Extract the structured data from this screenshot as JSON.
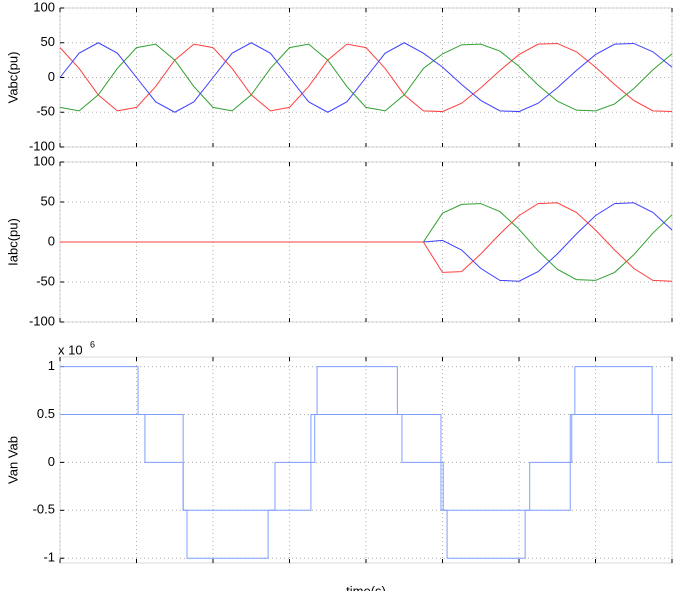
{
  "chart_data": [
    {
      "type": "line",
      "ylabel": "Vabc(pu)",
      "xlim": [
        0,
        8
      ],
      "xticks": [
        0,
        1,
        2,
        3,
        4,
        5,
        6,
        7,
        8
      ],
      "ylim": [
        -100,
        100
      ],
      "yticks": [
        -100,
        -50,
        0,
        50,
        100
      ],
      "grid": true,
      "x": [
        0,
        0.25,
        0.5,
        0.75,
        1,
        1.25,
        1.5,
        1.75,
        2,
        2.25,
        2.5,
        2.75,
        3,
        3.25,
        3.5,
        3.75,
        4,
        4.25,
        4.5,
        4.75,
        5,
        5.25,
        5.5,
        5.75,
        6,
        6.25,
        6.5,
        6.75,
        7,
        7.25,
        7.5,
        7.75,
        8
      ],
      "series": [
        {
          "color": "#ff4040",
          "values": [
            43,
            13,
            -25,
            -48,
            -43,
            -13,
            25,
            48,
            43,
            13,
            -25,
            -48,
            -43,
            -13,
            25,
            48,
            43,
            13,
            -25,
            -48,
            -49,
            -37,
            -15,
            10,
            33,
            48,
            49,
            37,
            15,
            -10,
            -33,
            -48,
            -49
          ]
        },
        {
          "color": "#30a030",
          "values": [
            -43,
            -48,
            -25,
            13,
            43,
            48,
            25,
            -13,
            -43,
            -48,
            -25,
            13,
            43,
            48,
            25,
            -13,
            -43,
            -48,
            -25,
            13,
            34,
            47,
            48,
            38,
            16,
            -11,
            -34,
            -47,
            -48,
            -38,
            -16,
            11,
            34
          ]
        },
        {
          "color": "#4040ff",
          "values": [
            0,
            35,
            50,
            35,
            0,
            -35,
            -50,
            -35,
            0,
            35,
            50,
            35,
            0,
            -35,
            -50,
            -35,
            0,
            35,
            50,
            35,
            15,
            -10,
            -33,
            -48,
            -49,
            -37,
            -15,
            10,
            33,
            48,
            49,
            37,
            15
          ]
        }
      ]
    },
    {
      "type": "line",
      "ylabel": "Iabc(pu)",
      "xlim": [
        0,
        8
      ],
      "xticks": [
        0,
        1,
        2,
        3,
        4,
        5,
        6,
        7,
        8
      ],
      "ylim": [
        -100,
        100
      ],
      "yticks": [
        -100,
        -50,
        0,
        50,
        100
      ],
      "grid": true,
      "x": [
        0,
        0.25,
        0.5,
        0.75,
        1,
        1.25,
        1.5,
        1.75,
        2,
        2.25,
        2.5,
        2.75,
        3,
        3.25,
        3.5,
        3.75,
        4,
        4.25,
        4.5,
        4.75,
        5,
        5.25,
        5.5,
        5.75,
        6,
        6.25,
        6.5,
        6.75,
        7,
        7.25,
        7.5,
        7.75,
        8
      ],
      "series": [
        {
          "color": "#30a030",
          "values": [
            0,
            0,
            0,
            0,
            0,
            0,
            0,
            0,
            0,
            0,
            0,
            0,
            0,
            0,
            0,
            0,
            0,
            0,
            0,
            0,
            36,
            47,
            48,
            38,
            16,
            -11,
            -34,
            -47,
            -48,
            -38,
            -16,
            11,
            34
          ]
        },
        {
          "color": "#4040ff",
          "values": [
            0,
            0,
            0,
            0,
            0,
            0,
            0,
            0,
            0,
            0,
            0,
            0,
            0,
            0,
            0,
            0,
            0,
            0,
            0,
            0,
            2,
            -10,
            -33,
            -48,
            -49,
            -37,
            -15,
            10,
            33,
            48,
            49,
            37,
            15
          ]
        },
        {
          "color": "#ff4040",
          "values": [
            0,
            0,
            0,
            0,
            0,
            0,
            0,
            0,
            0,
            0,
            0,
            0,
            0,
            0,
            0,
            0,
            0,
            0,
            0,
            0,
            -38,
            -37,
            -15,
            10,
            33,
            48,
            49,
            37,
            15,
            -10,
            -33,
            -48,
            -49
          ]
        }
      ]
    },
    {
      "type": "step",
      "ylabel": "Van Vab",
      "xlabel": "time(s)",
      "y_multiplier": {
        "base": "x 10",
        "exponent": "6"
      },
      "xlim": [
        0,
        8
      ],
      "xticks": [
        0,
        1,
        2,
        3,
        4,
        5,
        6,
        7,
        8
      ],
      "ylim": [
        -1.05,
        1.1
      ],
      "yticks": [
        -1,
        -0.5,
        0,
        0.5,
        1
      ],
      "grid": true,
      "series": [
        {
          "color": "#7f9fff",
          "x": [
            0,
            1.02,
            1.11,
            1.61,
            1.66,
            2.72,
            2.81,
            3.33,
            3.36,
            4.41,
            4.47,
            5.01,
            5.06,
            6.08,
            6.14,
            6.69,
            6.73,
            7.74,
            7.82,
            8
          ],
          "values": [
            1,
            0.5,
            0,
            -0.5,
            -1,
            -0.5,
            0,
            0.5,
            1,
            0.5,
            0,
            -0.5,
            -1,
            -0.5,
            0,
            0.5,
            1,
            0.5,
            0,
            0
          ]
        },
        {
          "color": "#7f9fff",
          "x": [
            0,
            1.61,
            3.28,
            4.98,
            6.67,
            8
          ],
          "values": [
            0.5,
            -0.5,
            0.5,
            -0.5,
            0.5,
            0.5
          ]
        }
      ]
    }
  ]
}
